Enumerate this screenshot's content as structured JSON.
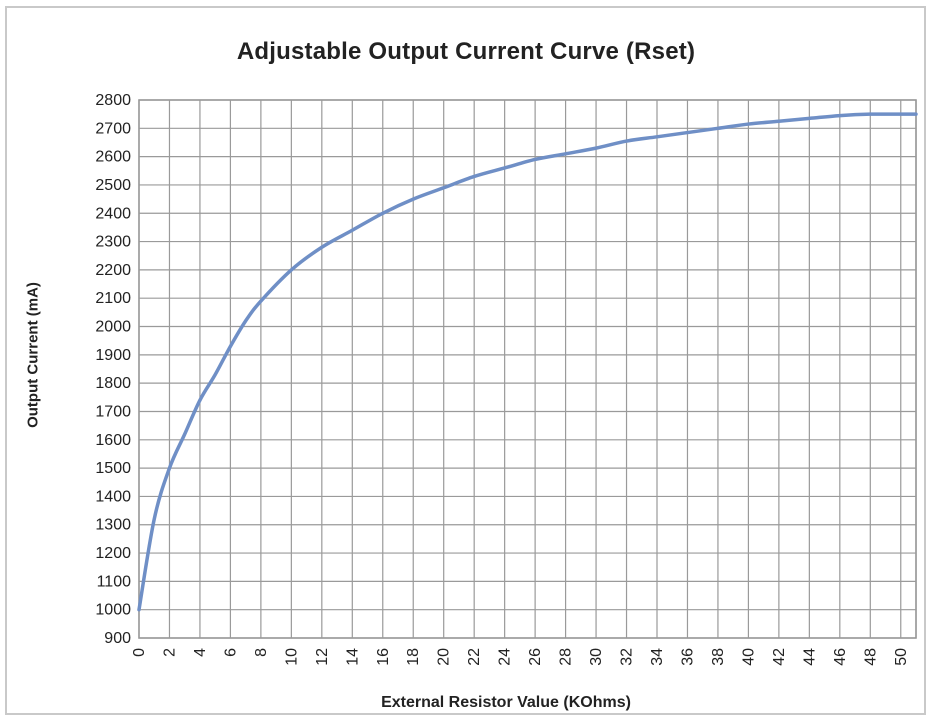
{
  "chart_data": {
    "type": "line",
    "title": "Adjustable Output Current Curve (Rset)",
    "xlabel": "External Resistor Value (KOhms)",
    "ylabel": "Output Current (mA)",
    "xlim": [
      0,
      51
    ],
    "ylim": [
      900,
      2800
    ],
    "x_ticks": [
      0,
      2,
      4,
      6,
      8,
      10,
      12,
      14,
      16,
      18,
      20,
      22,
      24,
      26,
      28,
      30,
      32,
      34,
      36,
      38,
      40,
      42,
      44,
      46,
      48,
      50
    ],
    "y_ticks": [
      900,
      1000,
      1100,
      1200,
      1300,
      1400,
      1500,
      1600,
      1700,
      1800,
      1900,
      2000,
      2100,
      2200,
      2300,
      2400,
      2500,
      2600,
      2700,
      2800
    ],
    "x_grid_step": 2,
    "y_grid_step": 100,
    "grid": true,
    "legend": "none",
    "series": [
      {
        "color": "#6f8fc6",
        "x": [
          0,
          1,
          2,
          3,
          4,
          5,
          6,
          7,
          8,
          10,
          12,
          14,
          16,
          18,
          20,
          22,
          24,
          26,
          28,
          30,
          32,
          34,
          36,
          38,
          40,
          42,
          44,
          46,
          48,
          50,
          51
        ],
        "y": [
          1000,
          1320,
          1500,
          1620,
          1740,
          1830,
          1930,
          2020,
          2090,
          2200,
          2280,
          2340,
          2400,
          2450,
          2490,
          2530,
          2560,
          2590,
          2610,
          2630,
          2655,
          2670,
          2685,
          2700,
          2715,
          2725,
          2735,
          2745,
          2750,
          2750,
          2750
        ]
      }
    ]
  }
}
